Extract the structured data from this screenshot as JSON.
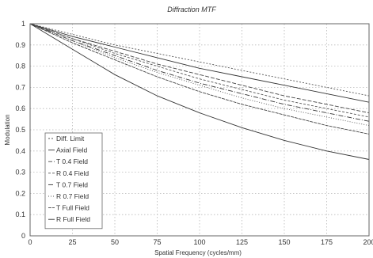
{
  "chart_data": {
    "type": "line",
    "title": "Diffraction MTF",
    "xlabel": "Spatial Frequency (cycles/mm)",
    "ylabel": "Modulation",
    "xlim": [
      0,
      200
    ],
    "ylim": [
      0,
      1
    ],
    "xticks": [
      "0",
      "25",
      "50",
      "75",
      "100",
      "125",
      "150",
      "175",
      "200"
    ],
    "yticks": [
      "0",
      "0.1",
      "0.2",
      "0.3",
      "0.4",
      "0.5",
      "0.6",
      "0.7",
      "0.8",
      "0.9",
      "1"
    ],
    "grid": true,
    "legend_position": "bottom-left",
    "x": [
      0,
      25,
      50,
      75,
      100,
      125,
      150,
      175,
      200
    ],
    "series": [
      {
        "name": "Diff. Limit",
        "values": [
          1.0,
          0.95,
          0.9,
          0.86,
          0.82,
          0.78,
          0.74,
          0.7,
          0.66
        ]
      },
      {
        "name": "Axial Field",
        "values": [
          1.0,
          0.94,
          0.89,
          0.84,
          0.79,
          0.75,
          0.71,
          0.67,
          0.63
        ]
      },
      {
        "name": "T 0.4 Field",
        "values": [
          1.0,
          0.93,
          0.87,
          0.81,
          0.76,
          0.71,
          0.66,
          0.62,
          0.58
        ]
      },
      {
        "name": "R 0.4 Field",
        "values": [
          1.0,
          0.93,
          0.86,
          0.8,
          0.74,
          0.69,
          0.64,
          0.6,
          0.56
        ]
      },
      {
        "name": "T 0.7 Field",
        "values": [
          1.0,
          0.92,
          0.85,
          0.78,
          0.72,
          0.67,
          0.62,
          0.58,
          0.54
        ]
      },
      {
        "name": "R 0.7 Field",
        "values": [
          1.0,
          0.92,
          0.84,
          0.77,
          0.71,
          0.65,
          0.6,
          0.56,
          0.52
        ]
      },
      {
        "name": "T Full Field",
        "values": [
          1.0,
          0.91,
          0.83,
          0.75,
          0.68,
          0.62,
          0.57,
          0.52,
          0.48
        ]
      },
      {
        "name": "R Full Field",
        "values": [
          1.0,
          0.88,
          0.76,
          0.66,
          0.58,
          0.51,
          0.45,
          0.4,
          0.36
        ]
      }
    ]
  }
}
